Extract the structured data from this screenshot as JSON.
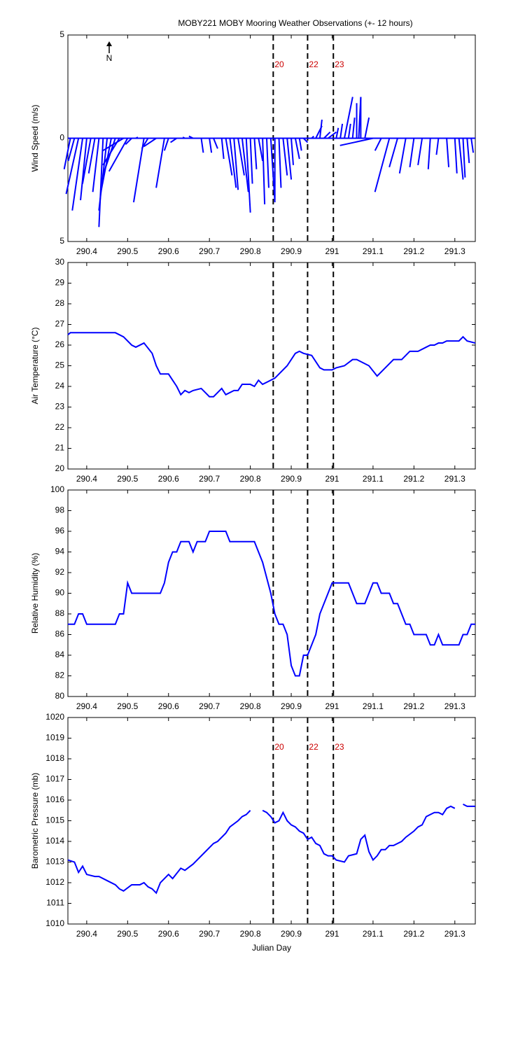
{
  "chart_data": [
    {
      "type": "stick",
      "title": "MOBY221 MOBY Mooring Weather Observations (+- 12 hours)",
      "ylabel": "Wind Speed (m/s)",
      "annotation": "N",
      "color": "#0000ff",
      "xlim": [
        290.354,
        291.35
      ],
      "xticks": [
        290.4,
        290.5,
        290.6,
        290.7,
        290.8,
        290.9,
        291,
        291.1,
        291.2,
        291.3
      ],
      "ylim": [
        -5,
        5
      ],
      "yticks": [
        {
          "value": -5,
          "label": "5"
        },
        0,
        5
      ],
      "vlines": [
        290.856,
        290.94,
        291.003
      ],
      "vline_labels": [
        "20",
        "22",
        "23"
      ],
      "vline_color": "#cc0000",
      "x": [
        290.36,
        290.37,
        290.38,
        290.39,
        290.4,
        290.41,
        290.42,
        290.43,
        290.44,
        290.45,
        290.46,
        290.47,
        290.48,
        290.49,
        290.5,
        290.51,
        290.52,
        290.54,
        290.55,
        290.57,
        290.59,
        290.6,
        290.62,
        290.64,
        290.66,
        290.68,
        290.7,
        290.71,
        290.73,
        290.74,
        290.75,
        290.76,
        290.77,
        290.78,
        290.79,
        290.8,
        290.81,
        290.82,
        290.83,
        290.84,
        290.85,
        290.86,
        290.87,
        290.88,
        290.89,
        290.9,
        290.91,
        290.92,
        290.93,
        290.95,
        290.96,
        290.97,
        290.98,
        290.99,
        291.01,
        291.02,
        291.03,
        291.04,
        291.05,
        291.06,
        291.065,
        291.07,
        291.08,
        291.1,
        291.12,
        291.14,
        291.16,
        291.18,
        291.2,
        291.22,
        291.24,
        291.26,
        291.28,
        291.3,
        291.31,
        291.32,
        291.33,
        291.34
      ],
      "u": [
        -0.3,
        -0.3,
        -0.6,
        -0.5,
        -0.3,
        -0.4,
        -0.3,
        -0.3,
        -0.2,
        -0.4,
        -0.5,
        -0.6,
        -0.8,
        -1.0,
        -0.9,
        -0.3,
        0.1,
        -0.5,
        -0.3,
        -0.6,
        -0.4,
        -0.2,
        -0.3,
        -0.1,
        -0.2,
        0.1,
        0.1,
        0.2,
        0.1,
        0.3,
        0.3,
        0.2,
        0.3,
        0.3,
        0.2,
        0.1,
        0.1,
        0.2,
        0.1,
        0.1,
        0.2,
        0.0,
        0.1,
        0.2,
        0.2,
        0.1,
        0.2,
        0.1,
        0.2,
        0.1,
        0.3,
        0.1,
        0.3,
        0.4,
        0.1,
        0.1,
        0.4,
        0.1,
        0.1,
        0.0,
        0.1,
        0.0,
        0.2,
        -1.6,
        -0.3,
        -0.7,
        -0.4,
        -0.3,
        -0.2,
        -0.2,
        -0.1,
        -0.1,
        0.1,
        0.1,
        0.2,
        0.1,
        0.1,
        0.1
      ],
      "v": [
        -1.5,
        -1.1,
        -2.7,
        -3.5,
        -3.0,
        -2.2,
        -1.7,
        -2.6,
        -4.3,
        -3.5,
        -2.6,
        -1.8,
        -1.3,
        -0.6,
        -1.6,
        -0.3,
        0.05,
        -3.1,
        -0.5,
        -0.4,
        -2.4,
        -0.6,
        -0.2,
        0.05,
        0.1,
        -0.7,
        -0.7,
        -0.5,
        -1.0,
        -1.8,
        -2.4,
        -2.5,
        -1.8,
        -2.6,
        -3.6,
        -2.2,
        -1.5,
        -1.1,
        -3.2,
        -2.4,
        -3.1,
        -3.0,
        -2.4,
        -1.8,
        -2.0,
        -1.3,
        -1.0,
        -0.6,
        -0.2,
        0.1,
        0.6,
        0.9,
        0.3,
        0.3,
        0.5,
        0.7,
        2.0,
        0.7,
        1.0,
        1.7,
        2.0,
        2.0,
        1.0,
        -0.35,
        -0.6,
        -2.6,
        -1.4,
        -1.7,
        -1.4,
        -1.3,
        -1.5,
        -0.8,
        -1.4,
        -1.7,
        -2.0,
        -1.9,
        -1.2,
        -0.7
      ]
    },
    {
      "type": "line",
      "ylabel": "Air Temperature (°C)",
      "xlim": [
        290.354,
        291.35
      ],
      "xticks": [
        290.4,
        290.5,
        290.6,
        290.7,
        290.8,
        290.9,
        291,
        291.1,
        291.2,
        291.3
      ],
      "ylim": [
        20,
        30
      ],
      "yticks": [
        20,
        21,
        22,
        23,
        24,
        25,
        26,
        27,
        28,
        29,
        30
      ],
      "vlines": [
        290.856,
        290.94,
        291.003
      ],
      "x": [
        290.354,
        290.36,
        290.47,
        290.49,
        290.51,
        290.52,
        290.54,
        290.56,
        290.57,
        290.58,
        290.6,
        290.62,
        290.63,
        290.64,
        290.65,
        290.66,
        290.68,
        290.7,
        290.71,
        290.73,
        290.74,
        290.76,
        290.77,
        290.78,
        290.8,
        290.81,
        290.82,
        290.83,
        290.86,
        290.89,
        290.91,
        290.92,
        290.93,
        290.95,
        290.97,
        290.98,
        291,
        291.01,
        291.03,
        291.05,
        291.06,
        291.09,
        291.11,
        291.13,
        291.15,
        291.17,
        291.19,
        291.21,
        291.23,
        291.24,
        291.25,
        291.26,
        291.27,
        291.28,
        291.31,
        291.32,
        291.33,
        291.35
      ],
      "series": [
        {
          "color": "#0000ff",
          "values": [
            26.5,
            26.6,
            26.6,
            26.4,
            26.0,
            25.9,
            26.1,
            25.6,
            25.0,
            24.6,
            24.6,
            24.0,
            23.6,
            23.8,
            23.7,
            23.8,
            23.9,
            23.5,
            23.5,
            23.9,
            23.6,
            23.8,
            23.8,
            24.1,
            24.1,
            24.0,
            24.3,
            24.1,
            24.4,
            25.0,
            25.6,
            25.7,
            25.6,
            25.5,
            24.9,
            24.8,
            24.8,
            24.9,
            25.0,
            25.3,
            25.3,
            25.0,
            24.5,
            24.9,
            25.3,
            25.3,
            25.7,
            25.7,
            25.9,
            26.0,
            26.0,
            26.1,
            26.1,
            26.2,
            26.2,
            26.4,
            26.2,
            26.1
          ]
        }
      ]
    },
    {
      "type": "line",
      "ylabel": "Relative Humidity (%)",
      "xlim": [
        290.354,
        291.35
      ],
      "xticks": [
        290.4,
        290.5,
        290.6,
        290.7,
        290.8,
        290.9,
        291,
        291.1,
        291.2,
        291.3
      ],
      "ylim": [
        80,
        100
      ],
      "yticks": [
        80,
        82,
        84,
        86,
        88,
        90,
        92,
        94,
        96,
        98,
        100
      ],
      "vlines": [
        290.856,
        290.94,
        291.003
      ],
      "x": [
        290.354,
        290.37,
        290.38,
        290.39,
        290.4,
        290.47,
        290.48,
        290.49,
        290.5,
        290.51,
        290.58,
        290.59,
        290.6,
        290.61,
        290.62,
        290.63,
        290.65,
        290.66,
        290.67,
        290.69,
        290.7,
        290.74,
        290.75,
        290.81,
        290.83,
        290.85,
        290.86,
        290.87,
        290.88,
        290.89,
        290.9,
        290.91,
        290.92,
        290.93,
        290.94,
        290.95,
        290.96,
        290.97,
        291,
        291.04,
        291.06,
        291.08,
        291.1,
        291.11,
        291.12,
        291.14,
        291.15,
        291.16,
        291.17,
        291.18,
        291.19,
        291.2,
        291.23,
        291.24,
        291.25,
        291.26,
        291.27,
        291.31,
        291.32,
        291.33,
        291.34,
        291.35
      ],
      "series": [
        {
          "color": "#0000ff",
          "values": [
            87,
            87,
            88,
            88,
            87,
            87,
            88,
            88,
            91,
            90,
            90,
            91,
            93,
            94,
            94,
            95,
            95,
            94,
            95,
            95,
            96,
            96,
            95,
            95,
            93,
            90,
            88,
            87,
            87,
            86,
            83,
            82,
            82,
            84,
            84,
            85,
            86,
            88,
            91,
            91,
            89,
            89,
            91,
            91,
            90,
            90,
            89,
            89,
            88,
            87,
            87,
            86,
            86,
            85,
            85,
            86,
            85,
            85,
            86,
            86,
            87,
            87
          ]
        }
      ]
    },
    {
      "type": "line",
      "ylabel": "Barometric Pressure (mb)",
      "xlabel": "Julian Day",
      "xlim": [
        290.354,
        291.35
      ],
      "xticks": [
        290.4,
        290.5,
        290.6,
        290.7,
        290.8,
        290.9,
        291,
        291.1,
        291.2,
        291.3
      ],
      "ylim": [
        1010,
        1020
      ],
      "yticks": [
        1010,
        1011,
        1012,
        1013,
        1014,
        1015,
        1016,
        1017,
        1018,
        1019,
        1020
      ],
      "vlines": [
        290.856,
        290.94,
        291.003
      ],
      "vline_labels": [
        "20",
        "22",
        "23"
      ],
      "vline_color": "#cc0000",
      "x": [
        290.354,
        290.37,
        290.38,
        290.39,
        290.4,
        290.42,
        290.43,
        290.45,
        290.47,
        290.48,
        290.49,
        290.51,
        290.53,
        290.54,
        290.55,
        290.56,
        290.57,
        290.58,
        290.6,
        290.61,
        290.63,
        290.64,
        290.66,
        290.67,
        290.69,
        290.71,
        290.72,
        290.74,
        290.75,
        290.77,
        290.78,
        290.79,
        290.8,
        290.815,
        290.83,
        290.84,
        290.85,
        290.86,
        290.87,
        290.88,
        290.89,
        290.9,
        290.91,
        290.92,
        290.93,
        290.94,
        290.95,
        290.96,
        290.97,
        290.98,
        290.99,
        291,
        291.01,
        291.03,
        291.04,
        291.06,
        291.07,
        291.08,
        291.09,
        291.1,
        291.11,
        291.12,
        291.13,
        291.14,
        291.15,
        291.17,
        291.18,
        291.2,
        291.21,
        291.22,
        291.23,
        291.24,
        291.25,
        291.26,
        291.27,
        291.28,
        291.29,
        291.3,
        291.31,
        291.32,
        291.33,
        291.34,
        291.35
      ],
      "series": [
        {
          "color": "#0000ff",
          "values": [
            1013.1,
            1013.0,
            1012.5,
            1012.8,
            1012.4,
            1012.3,
            1012.3,
            1012.1,
            1011.9,
            1011.7,
            1011.6,
            1011.9,
            1011.9,
            1012.0,
            1011.8,
            1011.7,
            1011.5,
            1012.0,
            1012.4,
            1012.2,
            1012.7,
            1012.6,
            1012.9,
            1013.1,
            1013.5,
            1013.9,
            1014.0,
            1014.4,
            1014.7,
            1015.0,
            1015.2,
            1015.3,
            1015.5,
            null,
            1015.5,
            1015.4,
            1015.2,
            1014.9,
            1015.0,
            1015.4,
            1015.0,
            1014.8,
            1014.7,
            1014.5,
            1014.4,
            1014.1,
            1014.2,
            1013.9,
            1013.8,
            1013.4,
            1013.3,
            1013.3,
            1013.1,
            1013.0,
            1013.3,
            1013.4,
            1014.1,
            1014.3,
            1013.5,
            1013.1,
            1013.3,
            1013.6,
            1013.6,
            1013.8,
            1013.8,
            1014.0,
            1014.2,
            1014.5,
            1014.7,
            1014.8,
            1015.2,
            1015.3,
            1015.4,
            1015.4,
            1015.3,
            1015.6,
            1015.7,
            1015.6,
            null,
            1015.8,
            1015.7,
            1015.7,
            1015.7
          ]
        }
      ]
    }
  ]
}
